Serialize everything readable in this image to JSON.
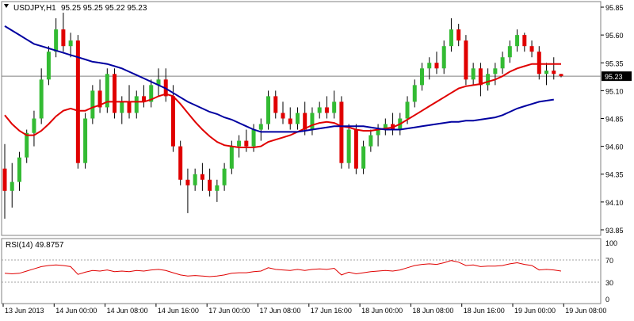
{
  "chart_data": {
    "type": "candlestick",
    "symbol_header": "USDJPY,H1",
    "ohlc_header": "95.25 95.25 95.22 95.23",
    "last_price_label": "95.23",
    "last_price": 95.23,
    "y_ticks": [
      "95.85",
      "95.60",
      "95.35",
      "95.10",
      "94.85",
      "94.60",
      "94.35",
      "94.10",
      "93.85"
    ],
    "ylim": [
      93.8,
      95.9
    ],
    "x_ticks": [
      "13 Jun 2013",
      "14 Jun 00:00",
      "14 Jun 08:00",
      "14 Jun 16:00",
      "17 Jun 00:00",
      "17 Jun 08:00",
      "17 Jun 16:00",
      "18 Jun 00:00",
      "18 Jun 08:00",
      "18 Jun 16:00",
      "19 Jun 00:00",
      "19 Jun 08:00"
    ],
    "candles": [
      [
        94.4,
        94.62,
        93.95,
        94.2
      ],
      [
        94.2,
        94.45,
        94.05,
        94.28
      ],
      [
        94.28,
        94.55,
        94.2,
        94.5
      ],
      [
        94.5,
        94.75,
        94.45,
        94.72
      ],
      [
        94.72,
        94.92,
        94.6,
        94.85
      ],
      [
        94.85,
        95.3,
        94.8,
        95.2
      ],
      [
        95.2,
        95.5,
        95.15,
        95.45
      ],
      [
        95.45,
        95.75,
        95.4,
        95.65
      ],
      [
        95.65,
        95.8,
        95.45,
        95.5
      ],
      [
        95.5,
        95.62,
        95.4,
        95.55
      ],
      [
        95.55,
        95.6,
        94.4,
        94.45
      ],
      [
        94.45,
        94.9,
        94.4,
        94.85
      ],
      [
        94.85,
        95.15,
        94.8,
        95.1
      ],
      [
        95.1,
        95.2,
        94.9,
        94.95
      ],
      [
        94.95,
        95.3,
        94.9,
        95.25
      ],
      [
        95.25,
        95.3,
        94.85,
        94.9
      ],
      [
        94.9,
        95.05,
        94.8,
        95.0
      ],
      [
        95.0,
        95.15,
        94.85,
        94.9
      ],
      [
        94.9,
        95.1,
        94.85,
        95.05
      ],
      [
        95.05,
        95.15,
        94.95,
        95.0
      ],
      [
        95.0,
        95.2,
        94.95,
        95.15
      ],
      [
        95.15,
        95.3,
        95.05,
        95.2
      ],
      [
        95.2,
        95.3,
        95.0,
        95.05
      ],
      [
        95.05,
        95.15,
        94.55,
        94.6
      ],
      [
        94.6,
        94.65,
        94.25,
        94.3
      ],
      [
        94.3,
        94.4,
        94.0,
        94.25
      ],
      [
        94.25,
        94.4,
        94.2,
        94.35
      ],
      [
        94.35,
        94.45,
        94.2,
        94.3
      ],
      [
        94.3,
        94.4,
        94.15,
        94.2
      ],
      [
        94.2,
        94.3,
        94.1,
        94.25
      ],
      [
        94.25,
        94.45,
        94.2,
        94.4
      ],
      [
        94.4,
        94.65,
        94.35,
        94.6
      ],
      [
        94.6,
        94.7,
        94.5,
        94.65
      ],
      [
        94.65,
        94.75,
        94.55,
        94.6
      ],
      [
        94.6,
        94.8,
        94.55,
        94.75
      ],
      [
        94.75,
        94.85,
        94.65,
        94.8
      ],
      [
        94.8,
        95.1,
        94.75,
        95.05
      ],
      [
        95.05,
        95.1,
        94.85,
        94.9
      ],
      [
        94.9,
        95.0,
        94.8,
        94.85
      ],
      [
        94.85,
        94.95,
        94.75,
        94.8
      ],
      [
        94.8,
        94.95,
        94.75,
        94.9
      ],
      [
        94.9,
        95.0,
        94.7,
        94.75
      ],
      [
        94.75,
        94.95,
        94.7,
        94.9
      ],
      [
        94.9,
        95.0,
        94.85,
        94.95
      ],
      [
        94.95,
        95.05,
        94.85,
        94.9
      ],
      [
        94.9,
        95.1,
        94.85,
        95.0
      ],
      [
        95.0,
        95.05,
        94.4,
        94.45
      ],
      [
        94.45,
        94.8,
        94.4,
        94.75
      ],
      [
        94.75,
        94.8,
        94.35,
        94.4
      ],
      [
        94.4,
        94.65,
        94.35,
        94.6
      ],
      [
        94.6,
        94.75,
        94.55,
        94.7
      ],
      [
        94.7,
        94.8,
        94.6,
        94.75
      ],
      [
        94.75,
        94.85,
        94.7,
        94.8
      ],
      [
        94.8,
        94.9,
        94.7,
        94.75
      ],
      [
        94.75,
        94.9,
        94.7,
        94.85
      ],
      [
        94.85,
        95.05,
        94.8,
        95.0
      ],
      [
        95.0,
        95.2,
        94.95,
        95.15
      ],
      [
        95.15,
        95.35,
        95.1,
        95.3
      ],
      [
        95.3,
        95.4,
        95.2,
        95.35
      ],
      [
        95.35,
        95.45,
        95.25,
        95.3
      ],
      [
        95.3,
        95.55,
        95.25,
        95.5
      ],
      [
        95.5,
        95.75,
        95.45,
        95.65
      ],
      [
        95.65,
        95.7,
        95.5,
        95.55
      ],
      [
        95.55,
        95.6,
        95.15,
        95.2
      ],
      [
        95.2,
        95.35,
        95.15,
        95.3
      ],
      [
        95.3,
        95.35,
        95.05,
        95.15
      ],
      [
        95.15,
        95.3,
        95.1,
        95.25
      ],
      [
        95.25,
        95.35,
        95.15,
        95.3
      ],
      [
        95.3,
        95.45,
        95.25,
        95.4
      ],
      [
        95.4,
        95.55,
        95.35,
        95.5
      ],
      [
        95.5,
        95.65,
        95.45,
        95.6
      ],
      [
        95.6,
        95.62,
        95.45,
        95.5
      ],
      [
        95.5,
        95.55,
        95.4,
        95.45
      ],
      [
        95.45,
        95.5,
        95.2,
        95.25
      ],
      [
        95.25,
        95.35,
        95.15,
        95.28
      ],
      [
        95.28,
        95.4,
        95.2,
        95.25
      ],
      [
        95.25,
        95.25,
        95.22,
        95.23
      ]
    ],
    "series": [
      {
        "name": "",
        "color": "#e00000",
        "values": [
          94.88,
          94.8,
          94.74,
          94.7,
          94.7,
          94.74,
          94.8,
          94.87,
          94.92,
          94.94,
          94.92,
          94.92,
          94.95,
          94.97,
          95.0,
          95.0,
          95.0,
          95.0,
          95.0,
          95.0,
          95.02,
          95.05,
          95.07,
          95.05,
          94.98,
          94.9,
          94.82,
          94.75,
          94.69,
          94.64,
          94.61,
          94.6,
          94.59,
          94.59,
          94.59,
          94.6,
          94.64,
          94.66,
          94.68,
          94.7,
          94.73,
          94.76,
          94.79,
          94.81,
          94.82,
          94.81,
          94.78,
          94.77,
          94.75,
          94.74,
          94.74,
          94.75,
          94.76,
          94.77,
          94.8,
          94.84,
          94.88,
          94.92,
          94.96,
          95.0,
          95.04,
          95.08,
          95.12,
          95.14,
          95.15,
          95.16,
          95.18,
          95.2,
          95.23,
          95.27,
          95.3,
          95.32,
          95.34,
          95.34,
          95.34,
          95.34,
          95.34
        ]
      },
      {
        "name": "",
        "color": "#0000a0",
        "values": [
          95.68,
          95.64,
          95.6,
          95.56,
          95.52,
          95.5,
          95.48,
          95.46,
          95.44,
          95.42,
          95.4,
          95.38,
          95.36,
          95.35,
          95.34,
          95.32,
          95.3,
          95.27,
          95.24,
          95.21,
          95.18,
          95.15,
          95.12,
          95.08,
          95.04,
          95.0,
          94.97,
          94.94,
          94.91,
          94.89,
          94.86,
          94.84,
          94.81,
          94.78,
          94.75,
          94.73,
          94.73,
          94.73,
          94.73,
          94.73,
          94.73,
          94.74,
          94.75,
          94.76,
          94.77,
          94.78,
          94.78,
          94.78,
          94.78,
          94.78,
          94.77,
          94.76,
          94.75,
          94.75,
          94.75,
          94.76,
          94.77,
          94.78,
          94.79,
          94.8,
          94.81,
          94.82,
          94.82,
          94.83,
          94.83,
          94.84,
          94.85,
          94.86,
          94.88,
          94.91,
          94.94,
          94.96,
          94.98,
          95.0,
          95.01,
          95.02
        ]
      }
    ],
    "rsi": {
      "label": "RSI(14) 49.8757",
      "y_ticks": [
        "70",
        "30",
        "0"
      ],
      "y_top_label": "100",
      "ylim": [
        0,
        100
      ],
      "levels": [
        70,
        30
      ],
      "color": "#e00000",
      "values": [
        46,
        45,
        46,
        50,
        54,
        58,
        60,
        61,
        60,
        58,
        44,
        48,
        51,
        50,
        52,
        49,
        50,
        49,
        51,
        50,
        52,
        53,
        51,
        47,
        43,
        41,
        42,
        41,
        40,
        41,
        43,
        46,
        47,
        47,
        49,
        50,
        56,
        53,
        52,
        51,
        53,
        51,
        53,
        54,
        53,
        55,
        43,
        48,
        45,
        47,
        49,
        50,
        51,
        50,
        52,
        56,
        60,
        62,
        63,
        62,
        65,
        69,
        66,
        60,
        61,
        58,
        59,
        59,
        60,
        63,
        65,
        62,
        60,
        52,
        53,
        52,
        50
      ]
    }
  }
}
